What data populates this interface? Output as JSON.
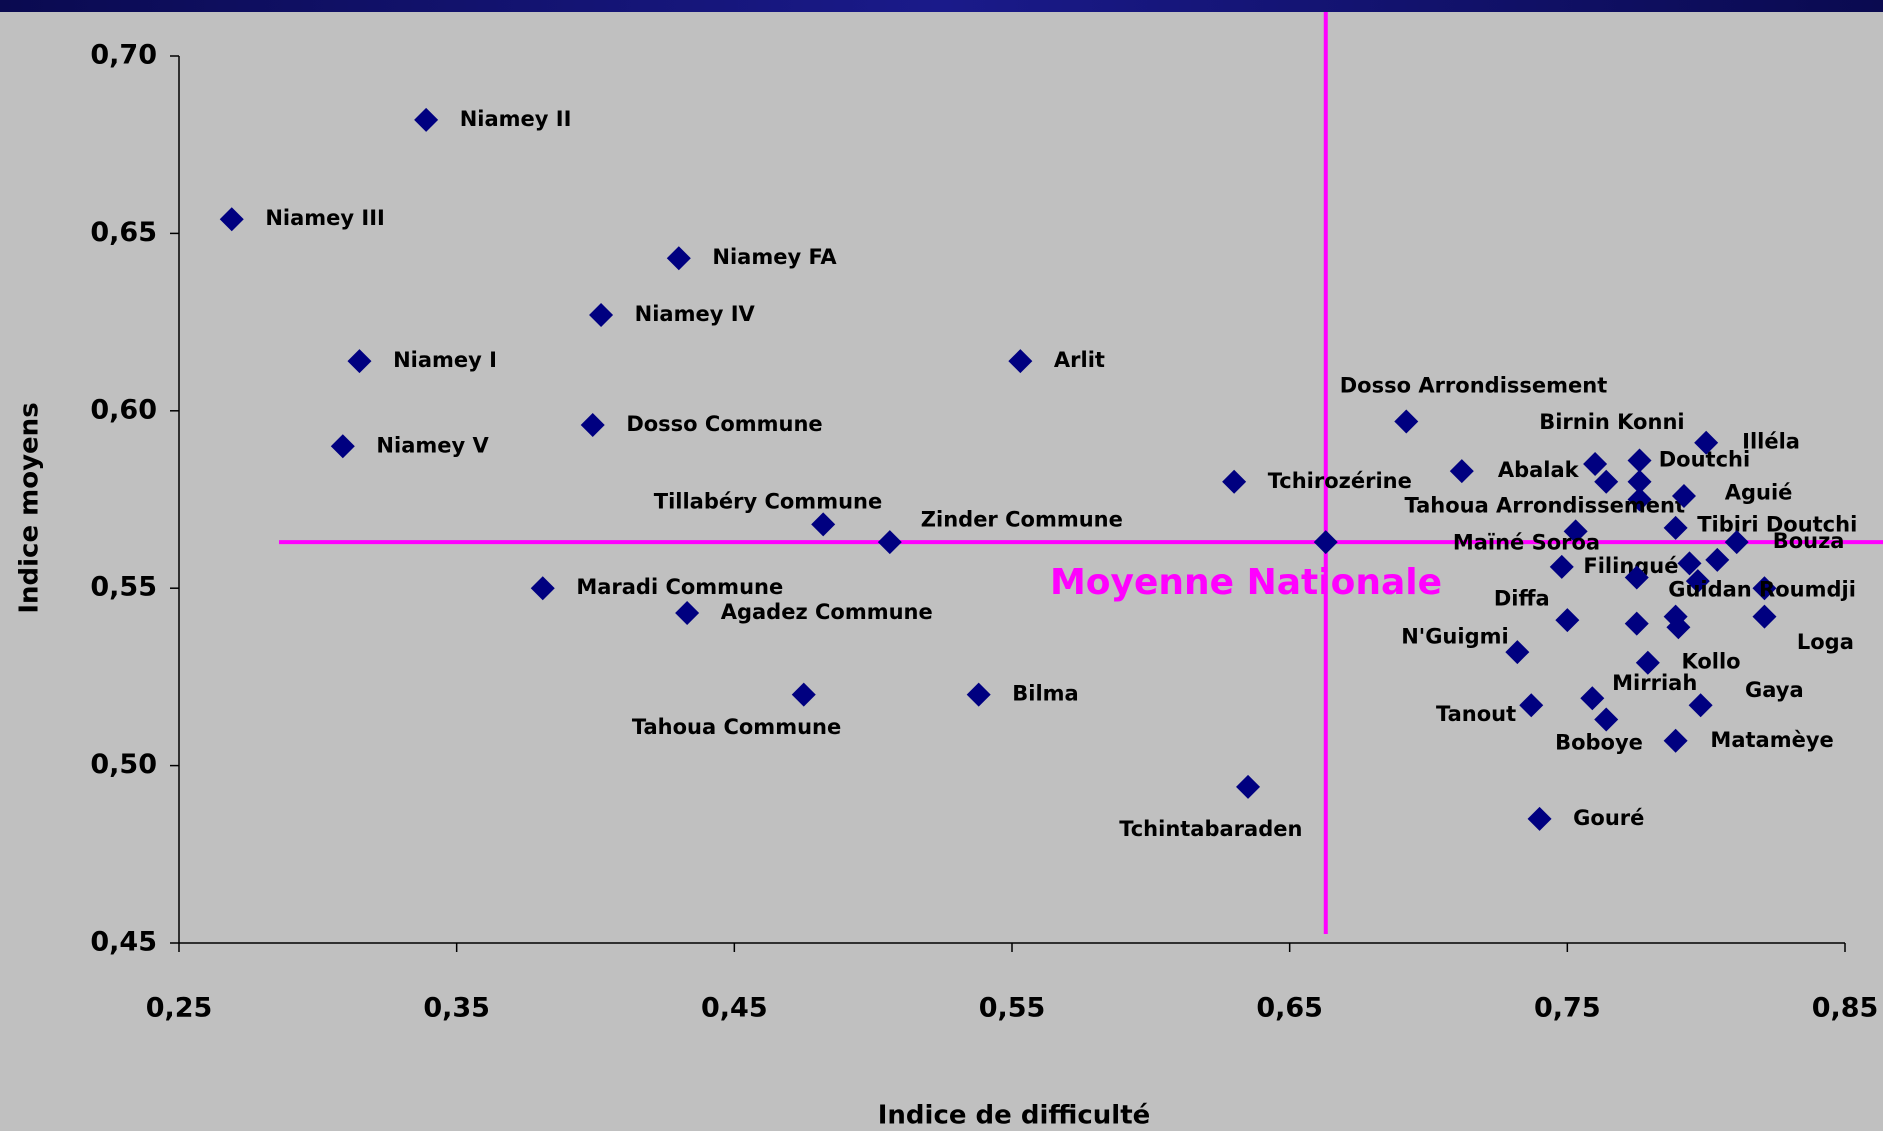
{
  "chart_data": {
    "type": "scatter",
    "xlabel": "Indice de difficulté",
    "ylabel": "Indice moyens",
    "annotation": "Moyenne Nationale",
    "mean_x": 0.663,
    "mean_y": 0.563,
    "color": "#000080",
    "ref_color": "#ff00ff",
    "xlim": [
      0.25,
      0.85
    ],
    "xticks": [
      {
        "value": 0.25,
        "label": "0,25"
      },
      {
        "value": 0.35,
        "label": "0,35"
      },
      {
        "value": 0.45,
        "label": "0,45"
      },
      {
        "value": 0.55,
        "label": "0,55"
      },
      {
        "value": 0.65,
        "label": "0,65"
      },
      {
        "value": 0.75,
        "label": "0,75"
      },
      {
        "value": 0.85,
        "label": "0,85"
      }
    ],
    "ylim": [
      0.45,
      0.7
    ],
    "yticks": [
      {
        "value": 0.45,
        "label": "0,45"
      },
      {
        "value": 0.5,
        "label": "0,50"
      },
      {
        "value": 0.55,
        "label": "0,55"
      },
      {
        "value": 0.6,
        "label": "0,60"
      },
      {
        "value": 0.65,
        "label": "0,65"
      },
      {
        "value": 0.7,
        "label": "0,70"
      }
    ],
    "labels": [
      "Niamey II",
      "Niamey III",
      "Niamey FA",
      "Niamey IV",
      "Niamey I",
      "Arlit",
      "Niamey V",
      "Dosso Commune",
      "Dosso Arrondissement",
      "Tchirozérine",
      "Tillabéry Commune",
      "Zinder Commune",
      "Maradi Commune",
      "Agadez Commune",
      "Tahoua Commune",
      "Bilma",
      "Tchintabaraden",
      "Gouré",
      null,
      "Abalak",
      "Birnin Konni",
      null,
      "Doutchi",
      null,
      "Tahoua Arrondissement",
      "Illéla",
      "Aguié",
      "Tibiri Doutchi",
      "Bouza",
      "Maïné Soroa",
      "Filingué",
      null,
      null,
      null,
      null,
      "Guidan Roumdji",
      "Loga",
      "Diffa",
      null,
      null,
      null,
      "N'Guigmi",
      "Kollo",
      "Mirriah",
      "Gaya",
      "Tanout",
      "Boboye",
      "Matamèye"
    ],
    "x": [
      0.339,
      0.269,
      0.43,
      0.402,
      0.315,
      0.553,
      0.309,
      0.399,
      0.692,
      0.63,
      0.482,
      0.506,
      0.381,
      0.433,
      0.475,
      0.538,
      0.635,
      0.74,
      0.663,
      0.712,
      0.76,
      0.764,
      0.776,
      0.776,
      0.776,
      0.8,
      0.792,
      0.789,
      0.811,
      0.753,
      0.748,
      0.775,
      0.794,
      0.797,
      0.804,
      0.821,
      0.821,
      0.75,
      0.775,
      0.789,
      0.79,
      0.732,
      0.779,
      0.759,
      0.798,
      0.737,
      0.764,
      0.789
    ],
    "y": [
      0.682,
      0.654,
      0.643,
      0.627,
      0.614,
      0.614,
      0.59,
      0.596,
      0.597,
      0.58,
      0.568,
      0.563,
      0.55,
      0.543,
      0.52,
      0.52,
      0.494,
      0.485,
      0.563,
      0.583,
      0.585,
      0.58,
      0.586,
      0.58,
      0.575,
      0.591,
      0.576,
      0.567,
      0.563,
      0.566,
      0.556,
      0.553,
      0.557,
      0.552,
      0.558,
      0.55,
      0.542,
      0.541,
      0.54,
      0.542,
      0.539,
      0.532,
      0.529,
      0.519,
      0.517,
      0.517,
      0.513,
      0.507
    ]
  }
}
